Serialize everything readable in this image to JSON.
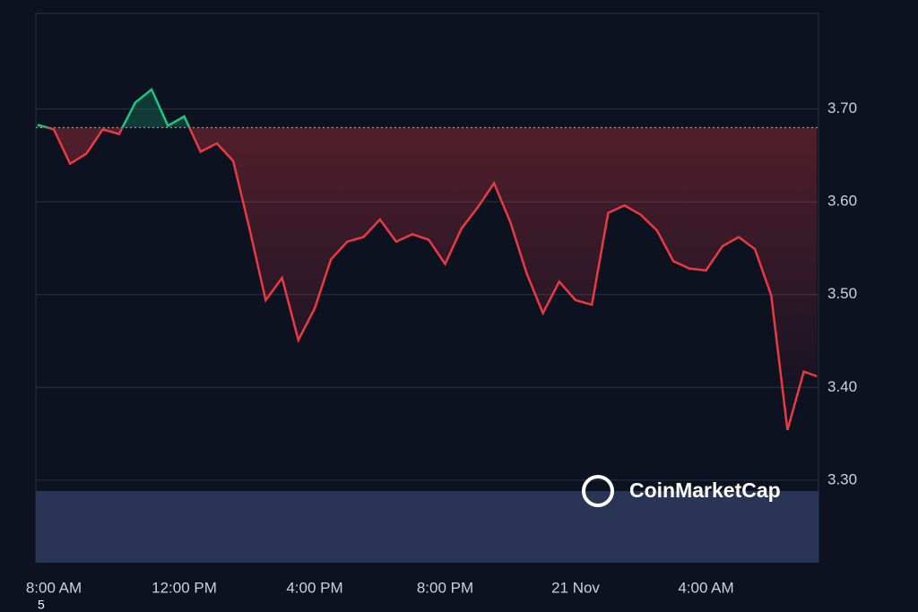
{
  "chart_data": {
    "type": "line",
    "x": [
      -0.5,
      0,
      0.5,
      1,
      1.5,
      2,
      2.5,
      3,
      3.5,
      4,
      4.5,
      5,
      5.5,
      6,
      6.5,
      7,
      7.5,
      8,
      8.5,
      9,
      9.5,
      10,
      10.5,
      11,
      11.5,
      12,
      12.5,
      13,
      13.5,
      14,
      14.5,
      15,
      15.5,
      16,
      16.5,
      17,
      17.5,
      18,
      18.5,
      19,
      19.5,
      20,
      20.5,
      21,
      21.5,
      22,
      22.5,
      23,
      23.4
    ],
    "values": [
      3.683,
      3.678,
      3.641,
      3.652,
      3.678,
      3.673,
      3.707,
      3.721,
      3.682,
      3.692,
      3.654,
      3.663,
      3.644,
      3.571,
      3.494,
      3.518,
      3.451,
      3.485,
      3.538,
      3.557,
      3.562,
      3.581,
      3.557,
      3.565,
      3.559,
      3.533,
      3.571,
      3.594,
      3.62,
      3.578,
      3.523,
      3.48,
      3.514,
      3.494,
      3.489,
      3.588,
      3.596,
      3.586,
      3.569,
      3.536,
      3.528,
      3.526,
      3.552,
      3.562,
      3.549,
      3.499,
      3.354,
      3.417,
      3.412
    ],
    "baseline": 3.68,
    "up_color": "#16c784",
    "down_color": "#ea3943",
    "xlim": [
      -0.55,
      23.45
    ],
    "xticks": [
      {
        "value": 0,
        "label": "8:00 AM"
      },
      {
        "value": 4,
        "label": "12:00 PM"
      },
      {
        "value": 8,
        "label": "4:00 PM"
      },
      {
        "value": 12,
        "label": "8:00 PM"
      },
      {
        "value": 16,
        "label": "21 Nov"
      },
      {
        "value": 20,
        "label": "4:00 AM"
      }
    ],
    "ylim": [
      3.211,
      3.803
    ],
    "yticks": [
      {
        "value": 3.3,
        "label": "3.30"
      },
      {
        "value": 3.4,
        "label": "3.40"
      },
      {
        "value": 3.5,
        "label": "3.50"
      },
      {
        "value": 3.6,
        "label": "3.60"
      },
      {
        "value": 3.7,
        "label": "3.70"
      }
    ],
    "grid": true,
    "watermark": "CoinMarketCap",
    "corner_text": "5"
  }
}
